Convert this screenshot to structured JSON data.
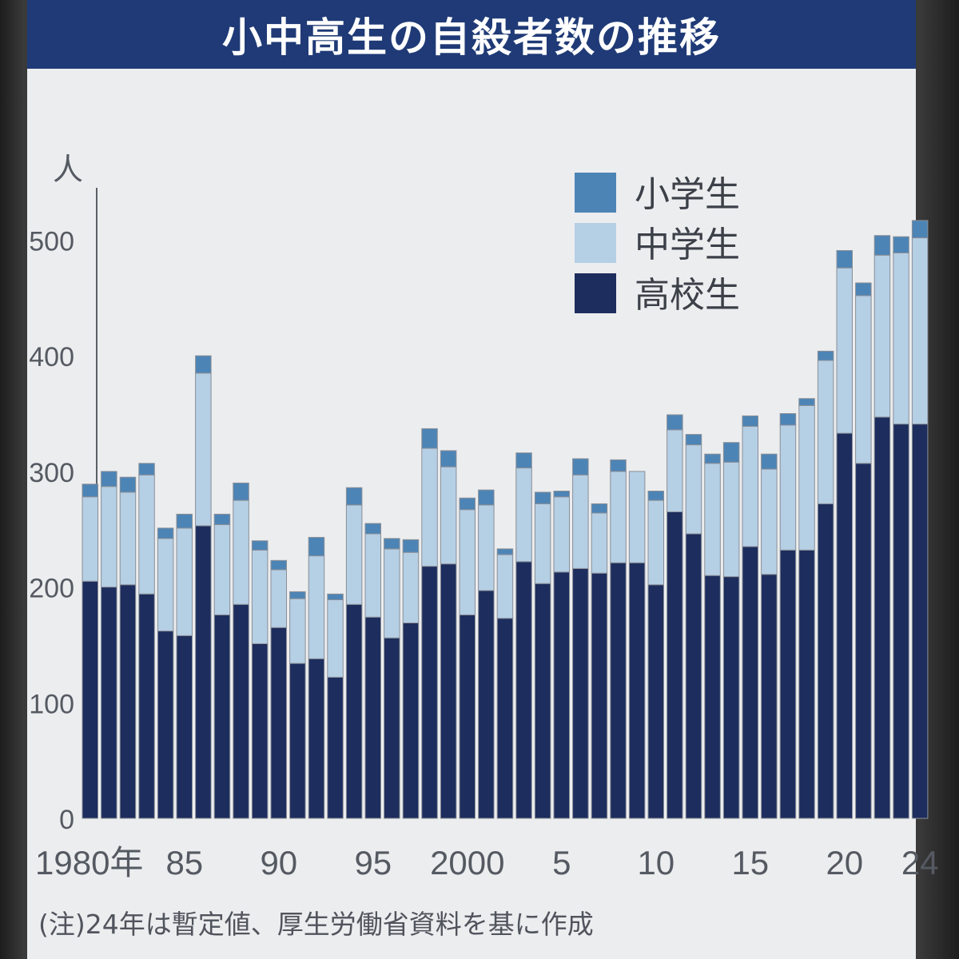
{
  "chart_data": {
    "type": "bar",
    "stacked": true,
    "title": "小中高生の自殺者数の推移",
    "ylabel": "人",
    "ylim": [
      0,
      540
    ],
    "yticks": [
      0,
      100,
      200,
      300,
      400,
      500
    ],
    "x": [
      1980,
      1981,
      1982,
      1983,
      1984,
      1985,
      1986,
      1987,
      1988,
      1989,
      1990,
      1991,
      1992,
      1993,
      1994,
      1995,
      1996,
      1997,
      1998,
      1999,
      2000,
      2001,
      2002,
      2003,
      2004,
      2005,
      2006,
      2007,
      2008,
      2009,
      2010,
      2011,
      2012,
      2013,
      2014,
      2015,
      2016,
      2017,
      2018,
      2019,
      2020,
      2021,
      2022,
      2023,
      2024
    ],
    "xtick_labels": [
      {
        "x": 1980,
        "label": "1980年"
      },
      {
        "x": 1985,
        "label": "85"
      },
      {
        "x": 1990,
        "label": "90"
      },
      {
        "x": 1995,
        "label": "95"
      },
      {
        "x": 2000,
        "label": "2000"
      },
      {
        "x": 2005,
        "label": "5"
      },
      {
        "x": 2010,
        "label": "10"
      },
      {
        "x": 2015,
        "label": "15"
      },
      {
        "x": 2020,
        "label": "20"
      },
      {
        "x": 2024,
        "label": "24"
      }
    ],
    "series": [
      {
        "name": "高校生",
        "color": "#1d2d5e",
        "values": [
          205,
          200,
          202,
          194,
          162,
          158,
          253,
          176,
          185,
          151,
          165,
          134,
          138,
          122,
          185,
          174,
          156,
          169,
          218,
          220,
          176,
          197,
          173,
          222,
          203,
          213,
          216,
          212,
          221,
          221,
          202,
          265,
          246,
          210,
          209,
          235,
          211,
          232,
          232,
          272,
          333,
          307,
          347,
          341,
          341
        ]
      },
      {
        "name": "中学生",
        "color": "#b5cfe5",
        "values": [
          73,
          87,
          80,
          103,
          80,
          93,
          132,
          78,
          90,
          81,
          50,
          56,
          89,
          67,
          86,
          72,
          77,
          61,
          102,
          84,
          91,
          74,
          55,
          81,
          69,
          65,
          81,
          52,
          79,
          79,
          73,
          71,
          77,
          97,
          99,
          104,
          91,
          108,
          125,
          124,
          143,
          145,
          140,
          148,
          161
        ]
      },
      {
        "name": "小学生",
        "color": "#4d84b6",
        "values": [
          11,
          13,
          13,
          10,
          9,
          12,
          15,
          9,
          15,
          8,
          8,
          6,
          16,
          5,
          15,
          9,
          9,
          11,
          17,
          14,
          10,
          13,
          5,
          13,
          10,
          5,
          14,
          8,
          10,
          0,
          8,
          13,
          9,
          8,
          17,
          9,
          13,
          10,
          6,
          8,
          15,
          11,
          17,
          14,
          15
        ]
      }
    ],
    "legend_position": "top-right",
    "grid": false
  },
  "note": "(注)24年は暫定値、厚生労働省資料を基に作成"
}
